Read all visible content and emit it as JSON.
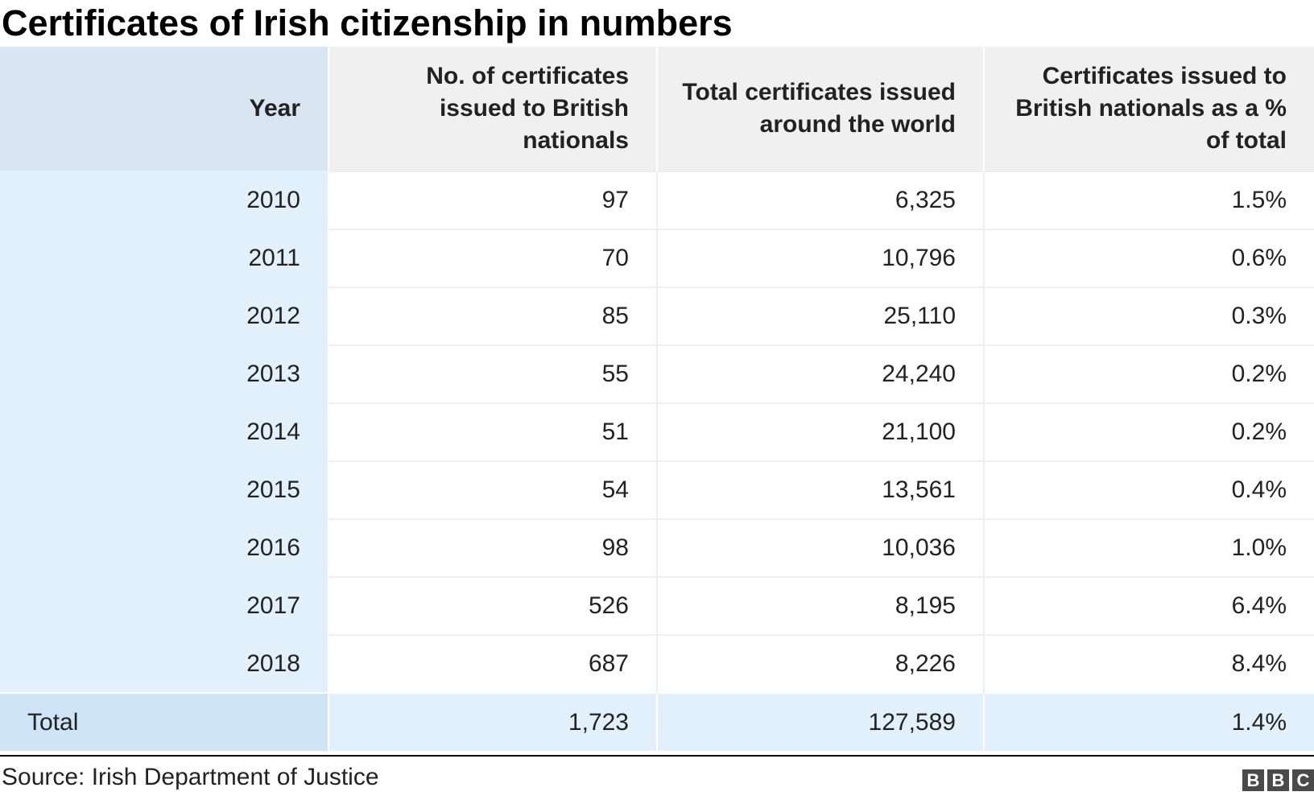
{
  "title": "Certificates of Irish citizenship in numbers",
  "source": "Source: Irish Department of Justice",
  "logo": [
    "B",
    "B",
    "C"
  ],
  "colors": {
    "header_bg": "#f0f0f0",
    "year_header_bg": "#d9e5f0",
    "year_col_bg": "#e2f0fb",
    "total_row_bg": "#e2f0fb",
    "total_label_bg": "#cfe4f7",
    "logo_bg": "#4a4a4a"
  },
  "chart_data": {
    "type": "table",
    "title": "Certificates of Irish citizenship in numbers",
    "columns": [
      "Year",
      "No. of certificates issued to British nationals",
      "Total certificates issued around the world",
      "Certificates issued to British nationals as a % of total"
    ],
    "rows": [
      [
        "2010",
        "97",
        "6,325",
        "1.5%"
      ],
      [
        "2011",
        "70",
        "10,796",
        "0.6%"
      ],
      [
        "2012",
        "85",
        "25,110",
        "0.3%"
      ],
      [
        "2013",
        "55",
        "24,240",
        "0.2%"
      ],
      [
        "2014",
        "51",
        "21,100",
        "0.2%"
      ],
      [
        "2015",
        "54",
        "13,561",
        "0.4%"
      ],
      [
        "2016",
        "98",
        "10,036",
        "1.0%"
      ],
      [
        "2017",
        "526",
        "8,195",
        "6.4%"
      ],
      [
        "2018",
        "687",
        "8,226",
        "8.4%"
      ]
    ],
    "total": [
      "Total",
      "1,723",
      "127,589",
      "1.4%"
    ]
  }
}
